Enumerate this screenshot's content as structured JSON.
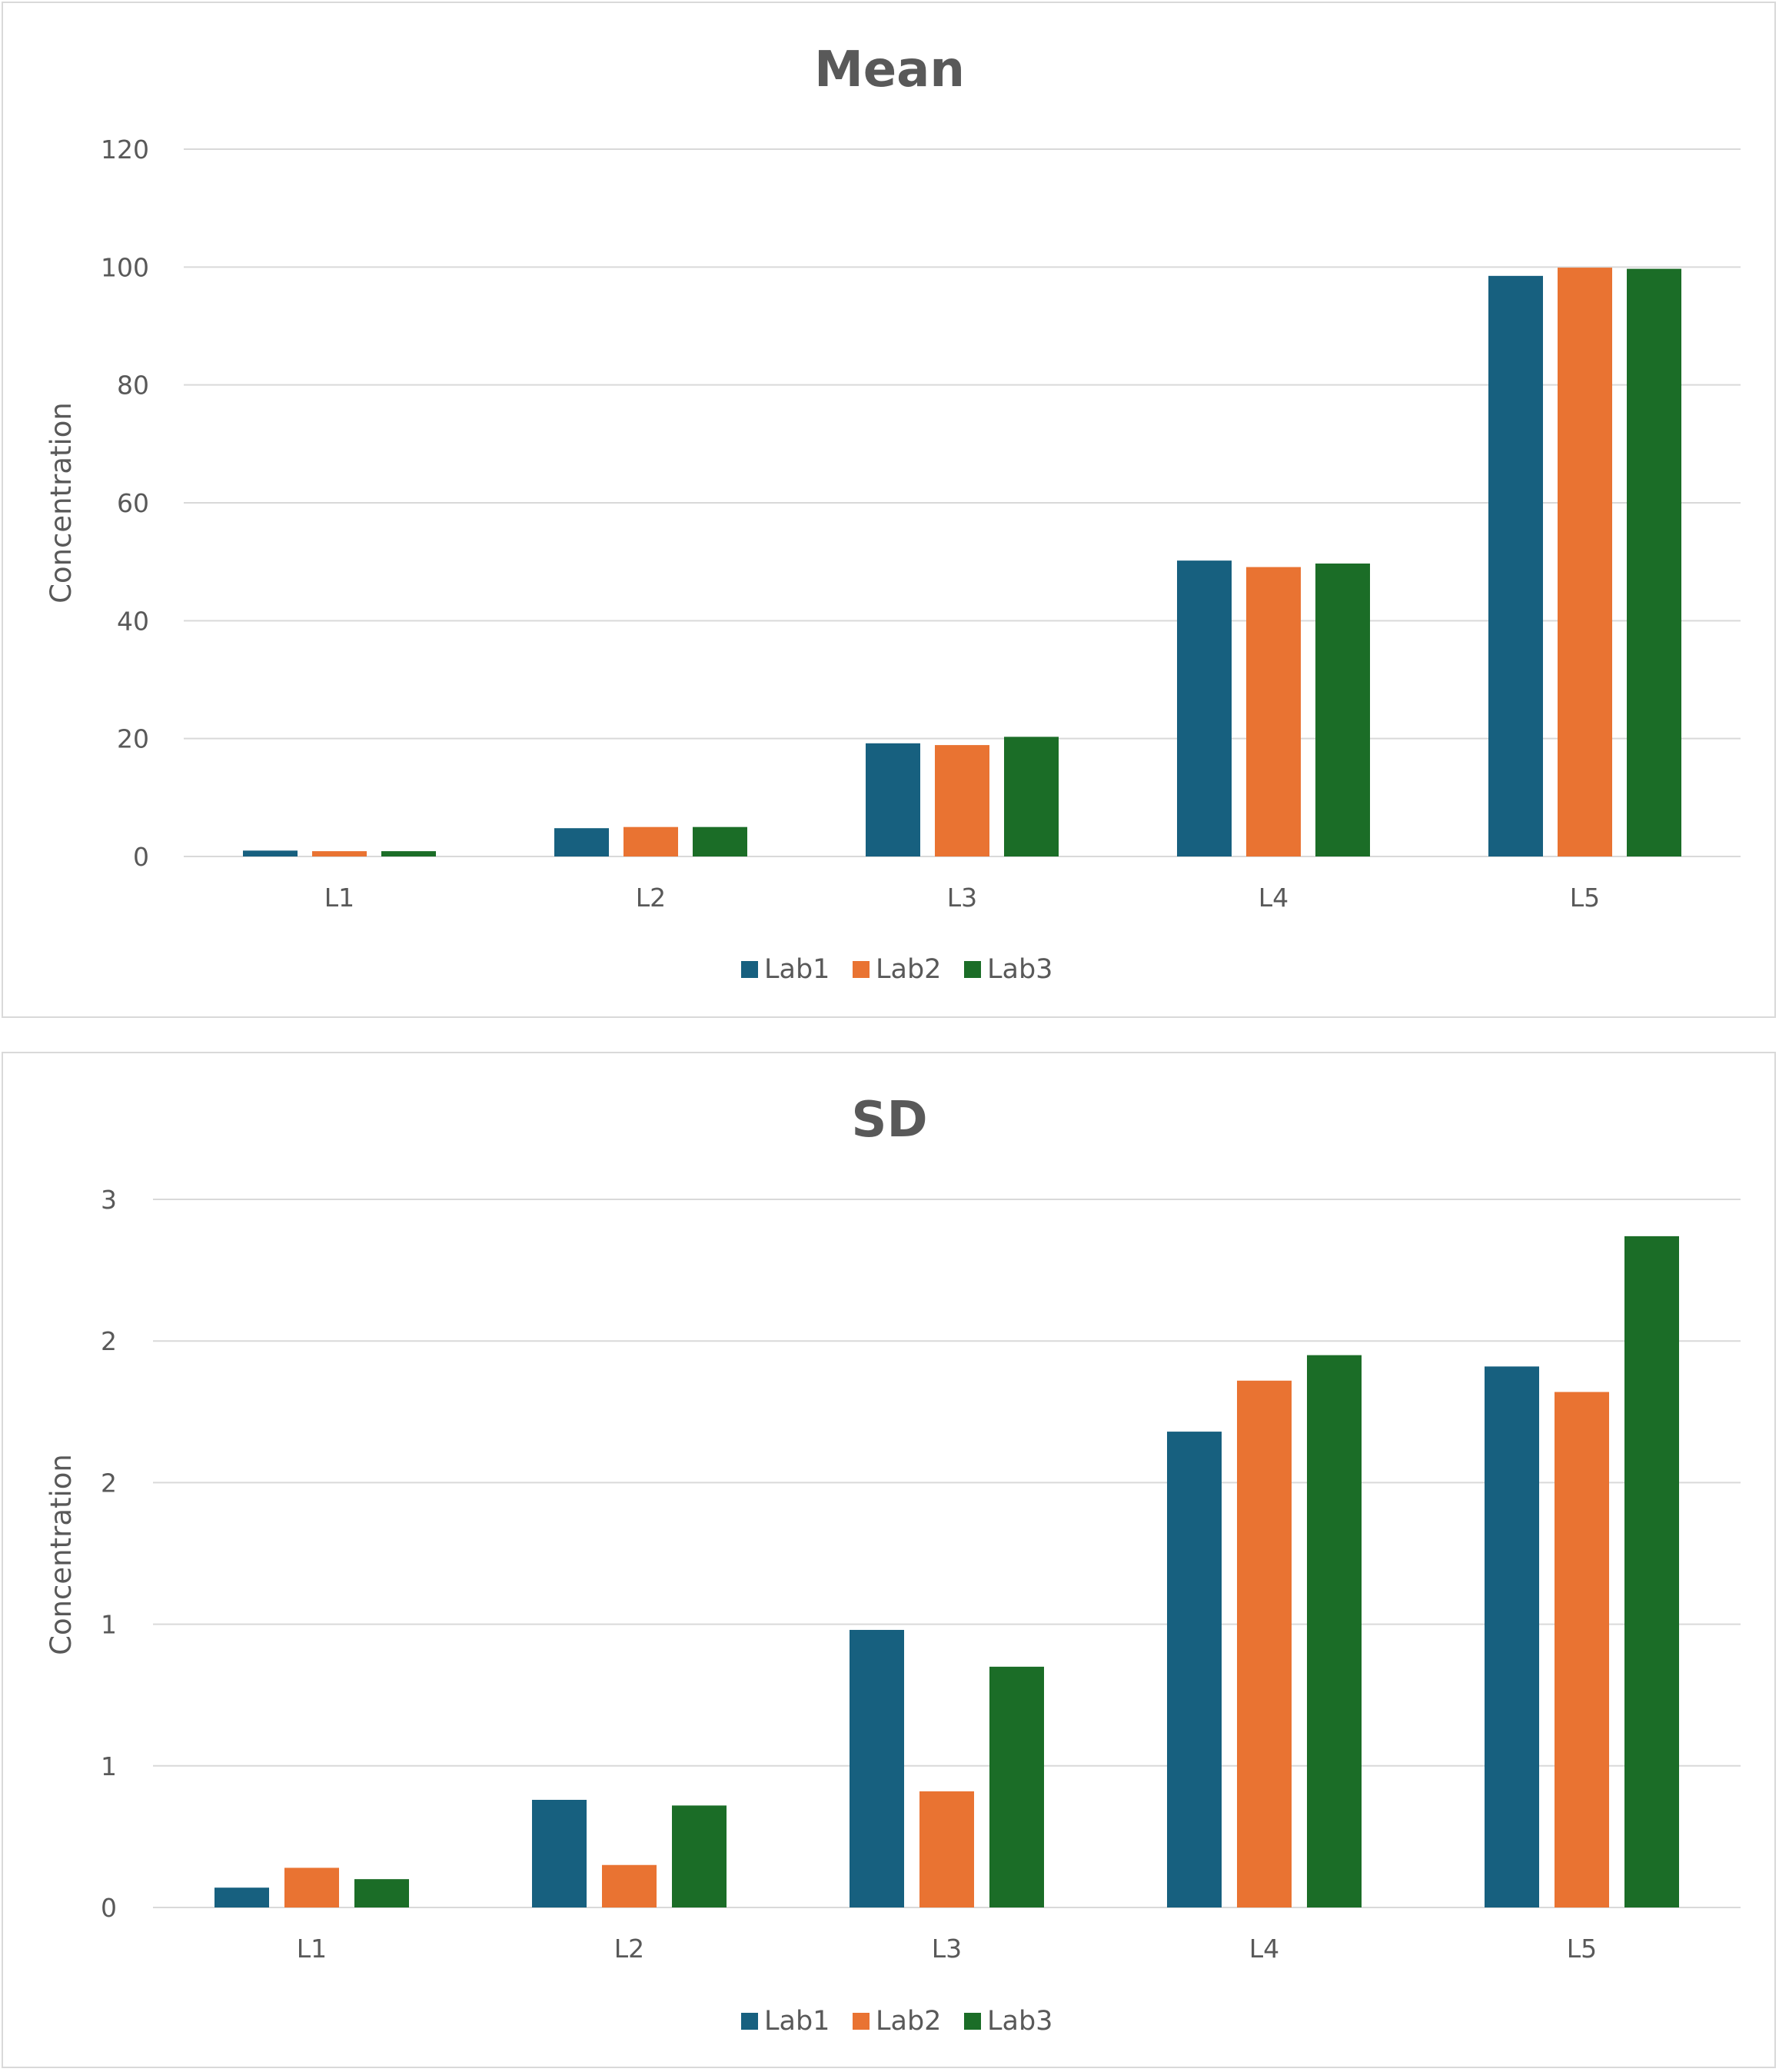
{
  "colors": {
    "Lab1": "#17607f",
    "Lab2": "#e97332",
    "Lab3": "#1b6d27",
    "grid": "#d9d9d9",
    "text": "#595959"
  },
  "chart_data": [
    {
      "type": "bar",
      "title": "Mean",
      "xlabel": "",
      "ylabel": "Concentration",
      "ylim": [
        0,
        120
      ],
      "yticks": [
        0,
        20,
        40,
        60,
        80,
        100,
        120
      ],
      "ytick_labels": [
        "0",
        "20",
        "40",
        "60",
        "80",
        "100",
        "120"
      ],
      "categories": [
        "L1",
        "L2",
        "L3",
        "L4",
        "L5"
      ],
      "series": [
        {
          "name": "Lab1",
          "values": [
            1.0,
            4.8,
            19.2,
            50.2,
            98.5
          ]
        },
        {
          "name": "Lab2",
          "values": [
            0.9,
            5.0,
            18.9,
            49.1,
            99.9
          ]
        },
        {
          "name": "Lab3",
          "values": [
            0.9,
            5.0,
            20.3,
            49.7,
            99.7
          ]
        }
      ],
      "legend": "bottom",
      "grid": true
    },
    {
      "type": "bar",
      "title": "SD",
      "xlabel": "",
      "ylabel": "Concentration",
      "ylim": [
        0,
        2.5
      ],
      "yticks": [
        0,
        0.5,
        1.0,
        1.5,
        2.0,
        2.5
      ],
      "ytick_labels": [
        "0",
        "1",
        "1",
        "2",
        "2",
        "3"
      ],
      "categories": [
        "L1",
        "L2",
        "L3",
        "L4",
        "L5"
      ],
      "series": [
        {
          "name": "Lab1",
          "values": [
            0.07,
            0.38,
            0.98,
            1.68,
            1.91
          ]
        },
        {
          "name": "Lab2",
          "values": [
            0.14,
            0.15,
            0.41,
            1.86,
            1.82
          ]
        },
        {
          "name": "Lab3",
          "values": [
            0.1,
            0.36,
            0.85,
            1.95,
            2.37
          ]
        }
      ],
      "legend": "bottom",
      "grid": true
    }
  ]
}
